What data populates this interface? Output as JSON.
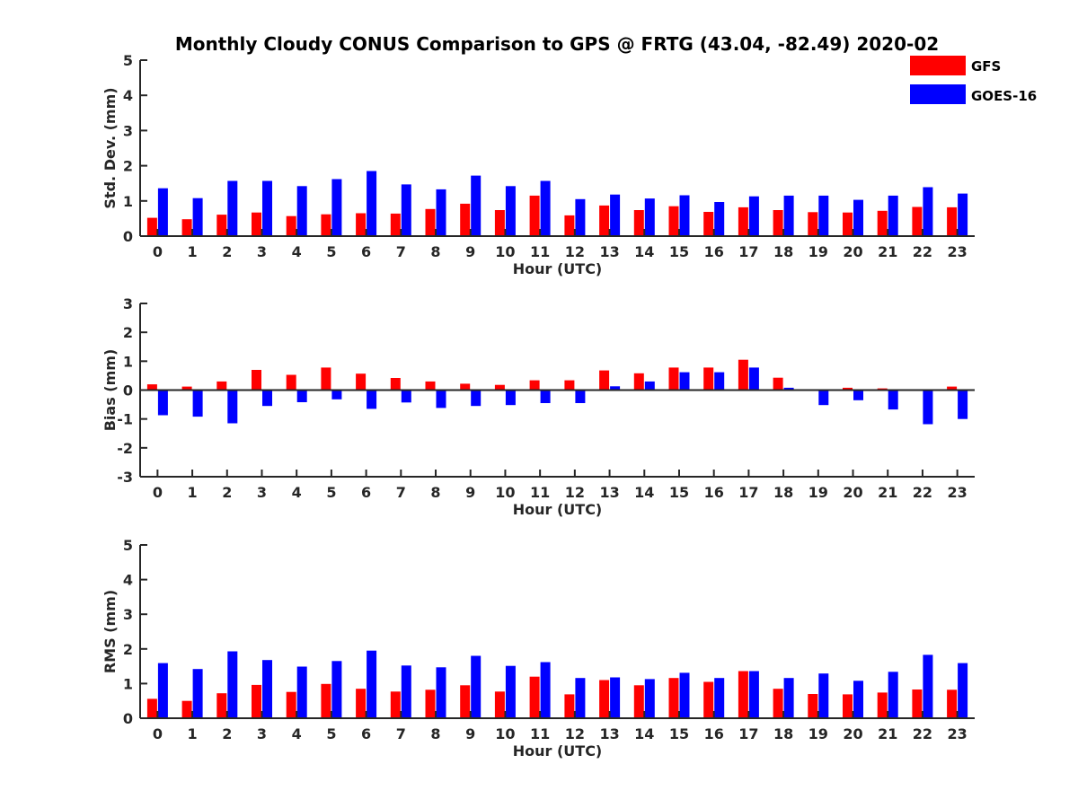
{
  "chart_data": {
    "type": "bar",
    "title": "Monthly Cloudy CONUS Comparison to GPS @ FRTG (43.04, -82.49) 2020-02",
    "legend": {
      "placement": "top-right",
      "entries": [
        "GFS",
        "GOES-16"
      ]
    },
    "colors": {
      "GFS": "#ff0000",
      "GOES-16": "#0000ff",
      "axis": "#262626"
    },
    "categories": [
      "0",
      "1",
      "2",
      "3",
      "4",
      "5",
      "6",
      "7",
      "8",
      "9",
      "10",
      "11",
      "12",
      "13",
      "14",
      "15",
      "16",
      "17",
      "18",
      "19",
      "20",
      "21",
      "22",
      "23"
    ],
    "panels": [
      {
        "ylabel": "Std. Dev. (mm)",
        "xlabel": "Hour (UTC)",
        "ylim": [
          0,
          5
        ],
        "yticks": [
          "0",
          "1",
          "2",
          "3",
          "4",
          "5"
        ],
        "series": [
          {
            "name": "GFS",
            "values": [
              0.52,
              0.48,
              0.61,
              0.67,
              0.57,
              0.62,
              0.65,
              0.64,
              0.77,
              0.92,
              0.74,
              1.15,
              0.59,
              0.87,
              0.74,
              0.85,
              0.69,
              0.82,
              0.74,
              0.68,
              0.67,
              0.72,
              0.83,
              0.82
            ]
          },
          {
            "name": "GOES-16",
            "values": [
              1.36,
              1.08,
              1.57,
              1.57,
              1.42,
              1.62,
              1.85,
              1.47,
              1.33,
              1.72,
              1.42,
              1.57,
              1.05,
              1.18,
              1.07,
              1.16,
              0.97,
              1.13,
              1.15,
              1.15,
              1.03,
              1.15,
              1.39,
              1.21
            ]
          }
        ]
      },
      {
        "ylabel": "Bias (mm)",
        "xlabel": "Hour (UTC)",
        "ylim": [
          -3,
          3
        ],
        "yticks": [
          "-3",
          "-2",
          "-1",
          "0",
          "1",
          "2",
          "3"
        ],
        "series": [
          {
            "name": "GFS",
            "values": [
              0.2,
              0.12,
              0.3,
              0.7,
              0.53,
              0.78,
              0.57,
              0.42,
              0.3,
              0.22,
              0.18,
              0.34,
              0.34,
              0.68,
              0.58,
              0.78,
              0.78,
              1.05,
              0.43,
              0.0,
              0.08,
              0.06,
              0.03,
              0.12
            ]
          },
          {
            "name": "GOES-16",
            "values": [
              -0.87,
              -0.92,
              -1.15,
              -0.55,
              -0.42,
              -0.32,
              -0.65,
              -0.43,
              -0.62,
              -0.55,
              -0.52,
              -0.45,
              -0.45,
              0.13,
              0.3,
              0.62,
              0.62,
              0.78,
              0.08,
              -0.52,
              -0.35,
              -0.67,
              -1.18,
              -1.0
            ]
          }
        ]
      },
      {
        "ylabel": "RMS (mm)",
        "xlabel": "Hour (UTC)",
        "ylim": [
          0,
          5
        ],
        "yticks": [
          "0",
          "1",
          "2",
          "3",
          "4",
          "5"
        ],
        "series": [
          {
            "name": "GFS",
            "values": [
              0.56,
              0.5,
              0.72,
              0.96,
              0.76,
              0.99,
              0.85,
              0.77,
              0.82,
              0.95,
              0.77,
              1.2,
              0.69,
              1.1,
              0.95,
              1.16,
              1.05,
              1.36,
              0.85,
              0.7,
              0.69,
              0.74,
              0.83,
              0.82
            ]
          },
          {
            "name": "GOES-16",
            "values": [
              1.59,
              1.42,
              1.93,
              1.68,
              1.49,
              1.65,
              1.95,
              1.52,
              1.47,
              1.8,
              1.51,
              1.62,
              1.16,
              1.18,
              1.13,
              1.31,
              1.16,
              1.36,
              1.16,
              1.29,
              1.08,
              1.34,
              1.83,
              1.59
            ]
          }
        ]
      }
    ]
  }
}
